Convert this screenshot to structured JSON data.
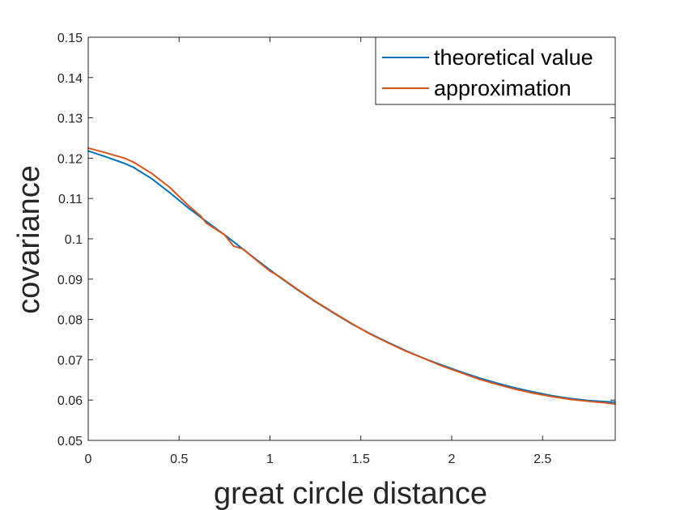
{
  "chart_data": {
    "type": "line",
    "xlabel": "great circle distance",
    "ylabel": "covariance",
    "xlim": [
      0,
      2.9
    ],
    "ylim": [
      0.05,
      0.15
    ],
    "xticks": [
      0,
      0.5,
      1,
      1.5,
      2,
      2.5
    ],
    "xtick_labels": [
      "0",
      "0.5",
      "1",
      "1.5",
      "2",
      "2.5"
    ],
    "yticks": [
      0.05,
      0.06,
      0.07,
      0.08,
      0.09,
      0.1,
      0.11,
      0.12,
      0.13,
      0.14,
      0.15
    ],
    "ytick_labels": [
      "0.05",
      "0.06",
      "0.07",
      "0.08",
      "0.09",
      "0.1",
      "0.11",
      "0.12",
      "0.13",
      "0.14",
      "0.15"
    ],
    "grid": false,
    "legend_position": "top-right",
    "series": [
      {
        "name": "theoretical value",
        "color": "#0072BD",
        "x": [
          0,
          0.1,
          0.2,
          0.25,
          0.35,
          0.45,
          0.55,
          0.65,
          0.75,
          0.85,
          0.95,
          1.05,
          1.15,
          1.25,
          1.35,
          1.45,
          1.55,
          1.65,
          1.75,
          1.85,
          1.95,
          2.05,
          2.15,
          2.25,
          2.35,
          2.45,
          2.55,
          2.65,
          2.75,
          2.85,
          2.9
        ],
        "y": [
          0.1218,
          0.1203,
          0.1187,
          0.1177,
          0.1149,
          0.1114,
          0.1077,
          0.1043,
          0.101,
          0.0975,
          0.094,
          0.0906,
          0.0874,
          0.0844,
          0.0816,
          0.0789,
          0.0765,
          0.0743,
          0.0722,
          0.0703,
          0.0686,
          0.067,
          0.0655,
          0.0642,
          0.063,
          0.062,
          0.0611,
          0.0604,
          0.0599,
          0.0596,
          0.0595
        ]
      },
      {
        "name": "approximation",
        "color": "#D95319",
        "x": [
          0,
          0.1,
          0.2,
          0.25,
          0.35,
          0.45,
          0.55,
          0.62,
          0.65,
          0.75,
          0.8,
          0.85,
          0.95,
          1.0,
          1.05,
          1.15,
          1.25,
          1.35,
          1.45,
          1.55,
          1.65,
          1.75,
          1.85,
          1.95,
          2.05,
          2.15,
          2.25,
          2.35,
          2.45,
          2.55,
          2.65,
          2.75,
          2.85,
          2.9
        ],
        "y": [
          0.1225,
          0.1213,
          0.12,
          0.119,
          0.1162,
          0.1127,
          0.1083,
          0.1056,
          0.1039,
          0.101,
          0.0982,
          0.0975,
          0.0938,
          0.092,
          0.0907,
          0.0875,
          0.0845,
          0.0817,
          0.079,
          0.0764,
          0.0742,
          0.0721,
          0.0703,
          0.0684,
          0.0668,
          0.0652,
          0.0639,
          0.0627,
          0.0617,
          0.0609,
          0.0602,
          0.0597,
          0.0593,
          0.059
        ]
      }
    ]
  }
}
